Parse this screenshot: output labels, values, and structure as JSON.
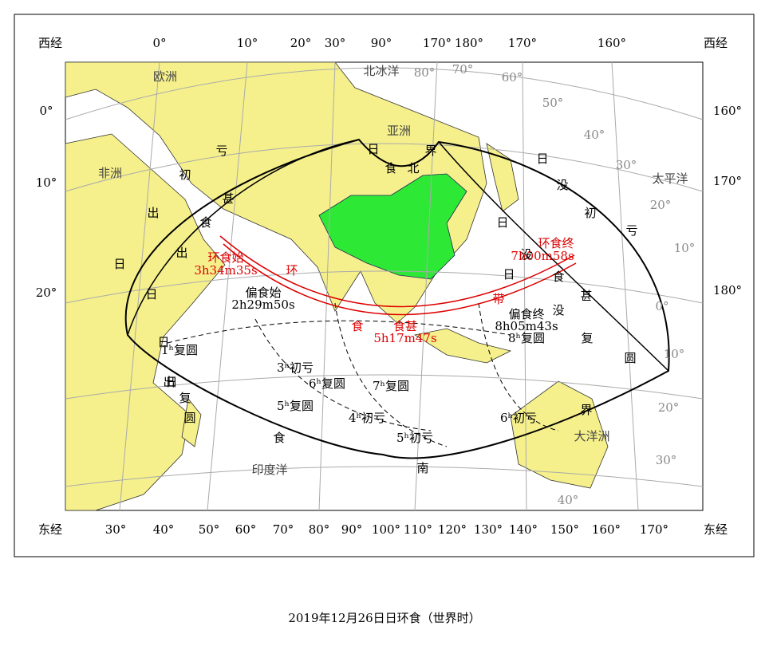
{
  "map": {
    "top_labels": [
      "西经",
      "0°",
      "10°",
      "20°",
      "30°",
      "90°",
      "170°",
      "180°",
      "170°",
      "160°",
      "西经"
    ],
    "left_labels": [
      "0°",
      "10°",
      "20°"
    ],
    "right_labels": [
      "160°",
      "170°",
      "180°"
    ],
    "bottom_labels": [
      "东经",
      "30°",
      "40°",
      "50°",
      "60°",
      "70°",
      "80°",
      "90°",
      "100°",
      "110°",
      "120°",
      "130°",
      "140°",
      "150°",
      "160°",
      "170°",
      "东经"
    ],
    "region_labels": [
      "欧洲",
      "北冰洋",
      "亚洲",
      "非洲",
      "太平洋",
      "印度洋",
      "大洋洲"
    ],
    "grid_labels": [
      "80°",
      "70°",
      "60°",
      "50°",
      "40°",
      "30°",
      "20°",
      "10°",
      "0°",
      "10°",
      "20°",
      "30°",
      "40°"
    ],
    "annular_labels": [
      "环食始",
      "3h34m35s",
      "环食终",
      "7h00m58s",
      "食甚",
      "5h17m47s"
    ],
    "partial_labels": [
      "偏食始",
      "2h29m50s",
      "偏食终",
      "8h05m43s"
    ],
    "curve_chars": [
      "日",
      "出",
      "复",
      "圆",
      "日",
      "出",
      "食",
      "甚",
      "日",
      "出",
      "初",
      "亏",
      "日",
      "食",
      "北",
      "界",
      "日",
      "没",
      "初",
      "亏",
      "日",
      "没",
      "食",
      "甚",
      "日",
      "没",
      "复",
      "圆",
      "日",
      "食",
      "南",
      "界",
      "环",
      "食",
      "带"
    ],
    "contour_labels": [
      "1ʰ复圆",
      "3ʰ初亏",
      "5ʰ复圆",
      "6ʰ复圆",
      "7ʰ复圆",
      "4ʰ初亏",
      "5ʰ初亏",
      "6ʰ初亏",
      "8ʰ复圆"
    ]
  },
  "caption": "2019年12月26日日环食（世界时）"
}
